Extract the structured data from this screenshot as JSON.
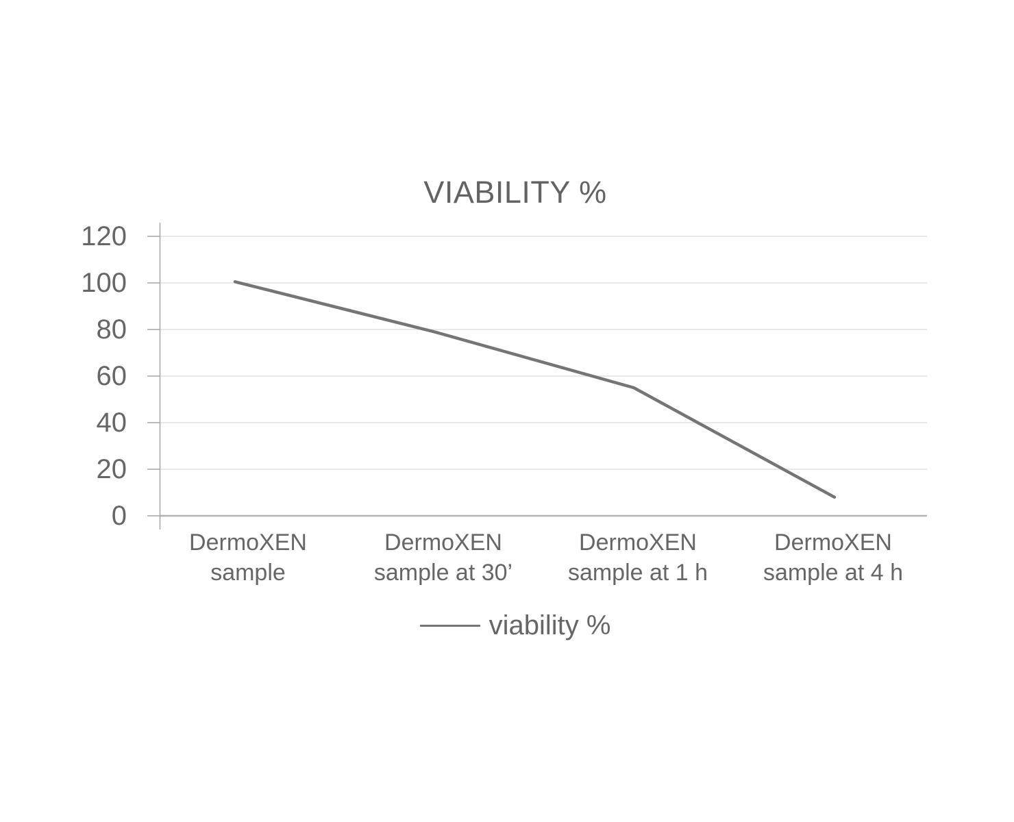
{
  "title": "VIABILITY %",
  "legend": {
    "label": "viability %"
  },
  "colors": {
    "series_line": "#757575",
    "gridline": "#d9d9d9",
    "zero_axis_line": "#b3b3b3",
    "axis": "#a6a6a6",
    "text": "#666666",
    "background": "#ffffff"
  },
  "chart_data": {
    "type": "line",
    "title": "VIABILITY %",
    "categories": [
      "DermoXEN sample",
      "DermoXEN sample at 30’",
      "DermoXEN sample at 1 h",
      "DermoXEN sample at 4 h"
    ],
    "series": [
      {
        "name": "viability %",
        "values": [
          100.5,
          79,
          55,
          8
        ]
      }
    ],
    "xlabel": "",
    "ylabel": "",
    "ylim": [
      0,
      120
    ],
    "y_ticks": [
      0,
      20,
      40,
      60,
      80,
      100,
      120
    ],
    "grid": true,
    "legend_position": "bottom"
  }
}
